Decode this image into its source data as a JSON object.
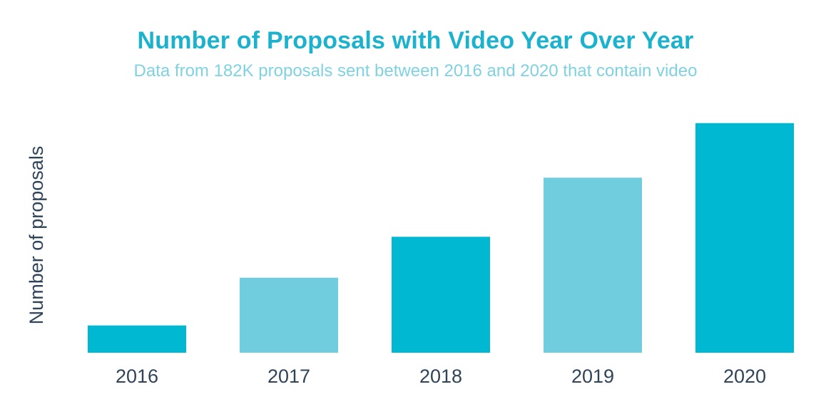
{
  "chart_data": {
    "type": "bar",
    "title": "Number of Proposals with Video Year Over Year",
    "subtitle": "Data from 182K proposals sent between 2016 and 2020 that contain video",
    "xlabel": "",
    "ylabel": "Number of proposals",
    "categories": [
      "2016",
      "2017",
      "2018",
      "2019",
      "2020"
    ],
    "values": [
      12,
      33,
      51,
      77,
      101
    ],
    "ylim": [
      0,
      105
    ],
    "grid": false,
    "legend": "none",
    "bar_colors": [
      "#00b8d1",
      "#6fcddd",
      "#00b8d1",
      "#6fcddd",
      "#00b8d1"
    ]
  },
  "colors": {
    "title": "#1ab2cc",
    "subtitle": "#7fd2e2",
    "axis_text": "#2f4359"
  }
}
